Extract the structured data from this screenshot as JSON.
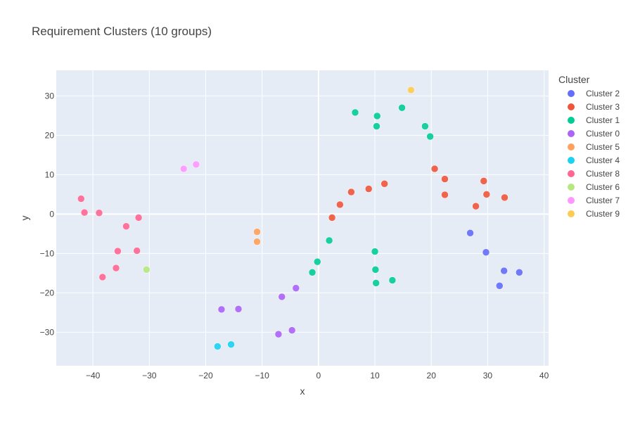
{
  "chart_data": {
    "type": "scatter",
    "title": "Requirement Clusters (10 groups)",
    "xlabel": "x",
    "ylabel": "y",
    "xlim": [
      -46.5,
      40.8
    ],
    "ylim": [
      -38.5,
      36.5
    ],
    "xticks": [
      -40,
      -30,
      -20,
      -10,
      0,
      10,
      20,
      30,
      40
    ],
    "yticks": [
      -30,
      -20,
      -10,
      0,
      10,
      20,
      30
    ],
    "grid": true,
    "plot_bg": "#e5ecf6",
    "legend": {
      "title": "Cluster",
      "position": "top-right"
    },
    "series": [
      {
        "name": "Cluster 2",
        "color": "#636efa",
        "points": [
          [
            26.9,
            -4.8
          ],
          [
            29.7,
            -9.7
          ],
          [
            32.9,
            -14.4
          ],
          [
            35.6,
            -14.8
          ],
          [
            32.1,
            -18.2
          ]
        ]
      },
      {
        "name": "Cluster 3",
        "color": "#ef553b",
        "points": [
          [
            20.6,
            11.5
          ],
          [
            22.4,
            8.9
          ],
          [
            29.3,
            8.4
          ],
          [
            22.4,
            4.9
          ],
          [
            29.8,
            5.0
          ],
          [
            33.0,
            4.2
          ],
          [
            27.9,
            2.0
          ],
          [
            11.7,
            7.7
          ],
          [
            8.9,
            6.4
          ],
          [
            5.8,
            5.6
          ],
          [
            3.8,
            2.4
          ],
          [
            2.4,
            -0.9
          ]
        ]
      },
      {
        "name": "Cluster 1",
        "color": "#00cc96",
        "points": [
          [
            6.5,
            25.8
          ],
          [
            10.4,
            24.9
          ],
          [
            10.3,
            22.3
          ],
          [
            14.8,
            27.0
          ],
          [
            18.9,
            22.3
          ],
          [
            19.8,
            19.7
          ],
          [
            1.9,
            -6.7
          ],
          [
            10.0,
            -9.5
          ],
          [
            -0.2,
            -12.1
          ],
          [
            10.1,
            -14.1
          ],
          [
            -1.1,
            -14.8
          ],
          [
            13.1,
            -16.8
          ],
          [
            10.2,
            -17.5
          ]
        ]
      },
      {
        "name": "Cluster 0",
        "color": "#ab63fa",
        "points": [
          [
            -4.0,
            -18.8
          ],
          [
            -6.5,
            -21.0
          ],
          [
            -17.2,
            -24.2
          ],
          [
            -14.2,
            -24.1
          ],
          [
            -4.7,
            -29.5
          ],
          [
            -7.1,
            -30.5
          ]
        ]
      },
      {
        "name": "Cluster 5",
        "color": "#ffa15a",
        "points": [
          [
            -10.9,
            -4.5
          ],
          [
            -10.9,
            -7.0
          ]
        ]
      },
      {
        "name": "Cluster 4",
        "color": "#19d3f3",
        "points": [
          [
            -15.5,
            -33.1
          ],
          [
            -17.9,
            -33.6
          ]
        ]
      },
      {
        "name": "Cluster 8",
        "color": "#ff6692",
        "points": [
          [
            -42.1,
            3.9
          ],
          [
            -41.5,
            0.4
          ],
          [
            -38.9,
            0.3
          ],
          [
            -31.9,
            -0.9
          ],
          [
            -34.1,
            -3.1
          ],
          [
            -35.6,
            -9.4
          ],
          [
            -32.2,
            -9.3
          ],
          [
            -35.9,
            -13.7
          ],
          [
            -38.3,
            -16.0
          ]
        ]
      },
      {
        "name": "Cluster 6",
        "color": "#b6e880",
        "points": [
          [
            -30.5,
            -14.1
          ]
        ]
      },
      {
        "name": "Cluster 7",
        "color": "#ff97ff",
        "points": [
          [
            -21.7,
            12.6
          ],
          [
            -23.9,
            11.5
          ]
        ]
      },
      {
        "name": "Cluster 9",
        "color": "#fecb52",
        "points": [
          [
            16.4,
            31.5
          ]
        ]
      }
    ]
  }
}
